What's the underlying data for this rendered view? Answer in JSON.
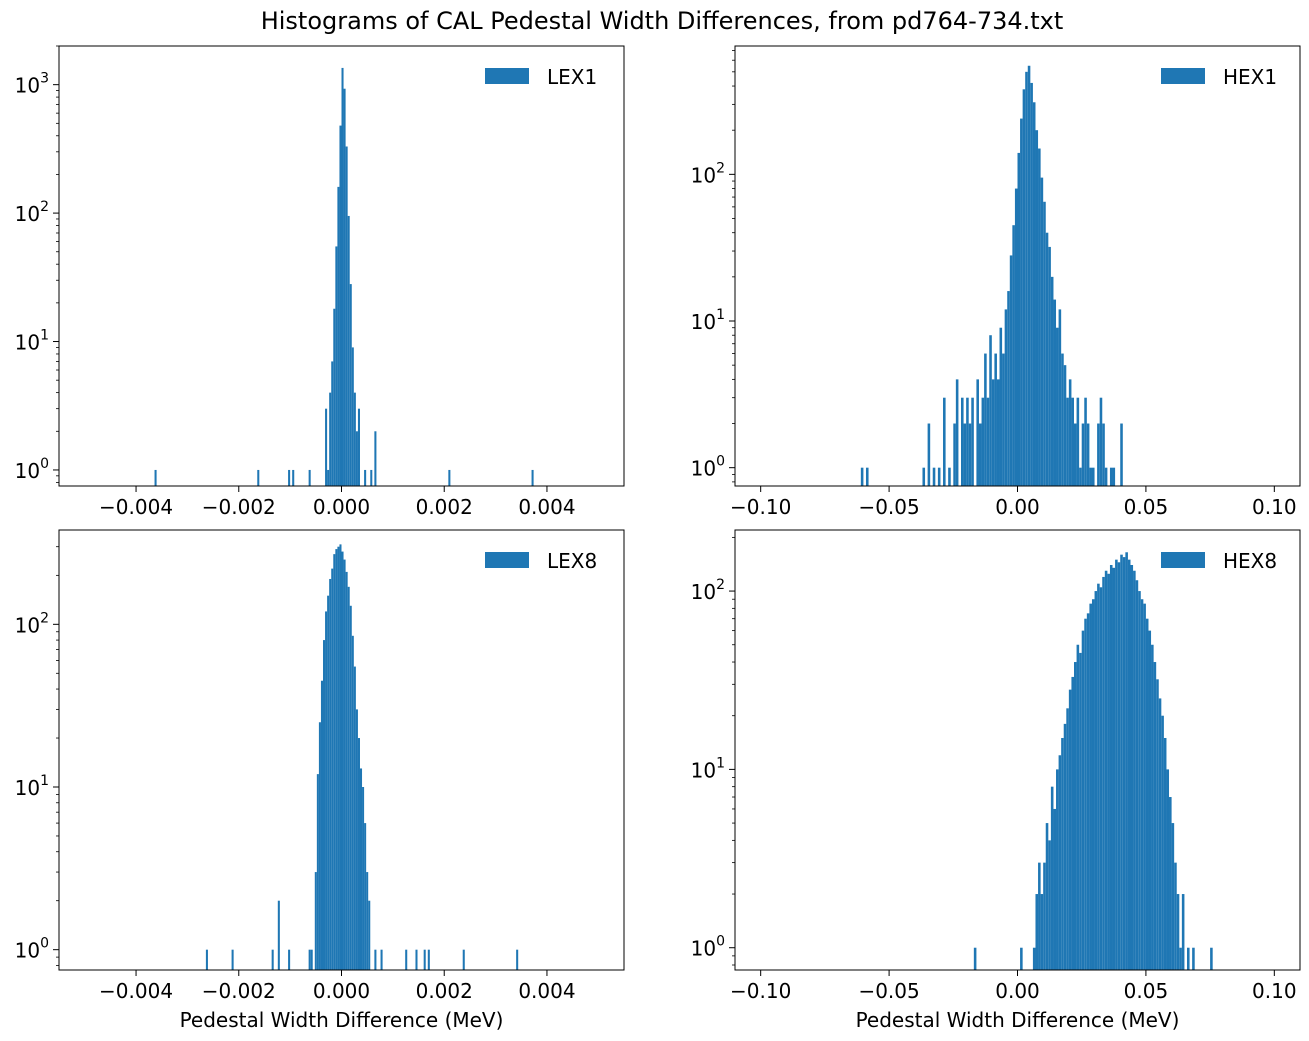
{
  "figure": {
    "title": "Histograms of CAL Pedestal Width Differences, from pd764-734.txt",
    "bar_color": "#1f77b4"
  },
  "chart_data": [
    {
      "type": "bar",
      "title": "",
      "legend": [
        "LEX1"
      ],
      "legend_position": "upper right",
      "xlabel": "",
      "ylabel": "",
      "yscale": "log",
      "xlim": [
        -0.0055,
        0.0055
      ],
      "ylim": [
        0.75,
        2000
      ],
      "xticks": [
        -0.004,
        -0.002,
        0.0,
        0.002,
        0.004
      ],
      "xtick_labels": [
        "−0.004",
        "−0.002",
        "0.000",
        "0.002",
        "0.004"
      ],
      "yticks": [
        1,
        10,
        100,
        1000
      ],
      "ytick_labels": [
        {
          "base": "10",
          "exp": "0"
        },
        {
          "base": "10",
          "exp": "1"
        },
        {
          "base": "10",
          "exp": "2"
        },
        {
          "base": "10",
          "exp": "3"
        }
      ],
      "bin_width": 4e-05,
      "bins": [
        [
          -0.00364,
          1
        ],
        [
          -0.00164,
          1
        ],
        [
          -0.00104,
          1
        ],
        [
          -0.00096,
          1
        ],
        [
          -0.00064,
          1
        ],
        [
          -0.00032,
          3
        ],
        [
          -0.00028,
          1
        ],
        [
          -0.00024,
          4
        ],
        [
          -0.0002,
          7
        ],
        [
          -0.00016,
          18
        ],
        [
          -0.00012,
          55
        ],
        [
          -8e-05,
          160
        ],
        [
          -4e-05,
          480
        ],
        [
          0.0,
          1350
        ],
        [
          4e-05,
          930
        ],
        [
          8e-05,
          330
        ],
        [
          0.00012,
          95
        ],
        [
          0.00016,
          28
        ],
        [
          0.0002,
          9
        ],
        [
          0.00024,
          4
        ],
        [
          0.00028,
          2
        ],
        [
          0.00032,
          3
        ],
        [
          0.00044,
          1
        ],
        [
          0.00056,
          1
        ],
        [
          0.00064,
          2
        ],
        [
          0.00208,
          1
        ],
        [
          0.0037,
          1
        ]
      ]
    },
    {
      "type": "bar",
      "title": "",
      "legend": [
        "HEX1"
      ],
      "legend_position": "upper right",
      "xlabel": "",
      "ylabel": "",
      "yscale": "log",
      "xlim": [
        -0.11,
        0.11
      ],
      "ylim": [
        0.75,
        750
      ],
      "xticks": [
        -0.1,
        -0.05,
        0.0,
        0.05,
        0.1
      ],
      "xtick_labels": [
        "−0.10",
        "−0.05",
        "0.00",
        "0.05",
        "0.10"
      ],
      "yticks": [
        1,
        10,
        100
      ],
      "ytick_labels": [
        {
          "base": "10",
          "exp": "0"
        },
        {
          "base": "10",
          "exp": "1"
        },
        {
          "base": "10",
          "exp": "2"
        }
      ],
      "bin_width": 0.001,
      "bins": [
        [
          -0.061,
          1
        ],
        [
          -0.059,
          1
        ],
        [
          -0.037,
          1
        ],
        [
          -0.035,
          2
        ],
        [
          -0.033,
          1
        ],
        [
          -0.031,
          1
        ],
        [
          -0.029,
          3
        ],
        [
          -0.027,
          1
        ],
        [
          -0.025,
          2
        ],
        [
          -0.024,
          4
        ],
        [
          -0.022,
          3
        ],
        [
          -0.021,
          2
        ],
        [
          -0.02,
          3
        ],
        [
          -0.019,
          2
        ],
        [
          -0.018,
          3
        ],
        [
          -0.016,
          4
        ],
        [
          -0.015,
          2
        ],
        [
          -0.014,
          3
        ],
        [
          -0.013,
          6
        ],
        [
          -0.012,
          3
        ],
        [
          -0.011,
          8
        ],
        [
          -0.01,
          4
        ],
        [
          -0.009,
          6
        ],
        [
          -0.008,
          4
        ],
        [
          -0.007,
          9
        ],
        [
          -0.006,
          6
        ],
        [
          -0.005,
          12
        ],
        [
          -0.004,
          16
        ],
        [
          -0.003,
          28
        ],
        [
          -0.002,
          45
        ],
        [
          -0.001,
          80
        ],
        [
          0.0,
          140
        ],
        [
          0.001,
          240
        ],
        [
          0.002,
          380
        ],
        [
          0.003,
          500
        ],
        [
          0.004,
          550
        ],
        [
          0.005,
          420
        ],
        [
          0.006,
          310
        ],
        [
          0.007,
          200
        ],
        [
          0.008,
          150
        ],
        [
          0.009,
          95
        ],
        [
          0.01,
          65
        ],
        [
          0.011,
          40
        ],
        [
          0.012,
          32
        ],
        [
          0.013,
          20
        ],
        [
          0.014,
          14
        ],
        [
          0.015,
          9
        ],
        [
          0.016,
          12
        ],
        [
          0.017,
          6
        ],
        [
          0.018,
          5
        ],
        [
          0.019,
          3
        ],
        [
          0.02,
          4
        ],
        [
          0.021,
          3
        ],
        [
          0.022,
          2
        ],
        [
          0.023,
          3
        ],
        [
          0.024,
          1
        ],
        [
          0.025,
          2
        ],
        [
          0.026,
          3
        ],
        [
          0.027,
          2
        ],
        [
          0.028,
          1
        ],
        [
          0.029,
          1
        ],
        [
          0.031,
          2
        ],
        [
          0.032,
          3
        ],
        [
          0.033,
          2
        ],
        [
          0.034,
          1
        ],
        [
          0.036,
          1
        ],
        [
          0.037,
          1
        ],
        [
          0.04,
          2
        ]
      ]
    },
    {
      "type": "bar",
      "title": "",
      "legend": [
        "LEX8"
      ],
      "legend_position": "upper right",
      "xlabel": "Pedestal Width Difference (MeV)",
      "ylabel": "",
      "yscale": "log",
      "xlim": [
        -0.0055,
        0.0055
      ],
      "ylim": [
        0.75,
        380
      ],
      "xticks": [
        -0.004,
        -0.002,
        0.0,
        0.002,
        0.004
      ],
      "xtick_labels": [
        "−0.004",
        "−0.002",
        "0.000",
        "0.002",
        "0.004"
      ],
      "yticks": [
        1,
        10,
        100
      ],
      "ytick_labels": [
        {
          "base": "10",
          "exp": "0"
        },
        {
          "base": "10",
          "exp": "1"
        },
        {
          "base": "10",
          "exp": "2"
        }
      ],
      "bin_width": 4e-05,
      "bins": [
        [
          -0.00264,
          1
        ],
        [
          -0.00214,
          1
        ],
        [
          -0.00136,
          1
        ],
        [
          -0.00124,
          2
        ],
        [
          -0.00104,
          1
        ],
        [
          -0.00064,
          1
        ],
        [
          -0.0006,
          1
        ],
        [
          -0.00052,
          3
        ],
        [
          -0.00048,
          12
        ],
        [
          -0.00044,
          25
        ],
        [
          -0.0004,
          45
        ],
        [
          -0.00036,
          80
        ],
        [
          -0.00032,
          120
        ],
        [
          -0.00028,
          150
        ],
        [
          -0.00024,
          190
        ],
        [
          -0.0002,
          220
        ],
        [
          -0.00016,
          270
        ],
        [
          -0.00012,
          290
        ],
        [
          -8e-05,
          300
        ],
        [
          -4e-05,
          310
        ],
        [
          0.0,
          280
        ],
        [
          4e-05,
          250
        ],
        [
          8e-05,
          210
        ],
        [
          0.00012,
          170
        ],
        [
          0.00016,
          130
        ],
        [
          0.0002,
          85
        ],
        [
          0.00024,
          55
        ],
        [
          0.00028,
          30
        ],
        [
          0.00032,
          20
        ],
        [
          0.00036,
          13
        ],
        [
          0.0004,
          10
        ],
        [
          0.00044,
          6
        ],
        [
          0.00048,
          3
        ],
        [
          0.00052,
          2
        ],
        [
          0.00064,
          1
        ],
        [
          0.00076,
          1
        ],
        [
          0.00124,
          1
        ],
        [
          0.00144,
          1
        ],
        [
          0.0016,
          1
        ],
        [
          0.00168,
          1
        ],
        [
          0.00236,
          1
        ],
        [
          0.0034,
          1
        ]
      ]
    },
    {
      "type": "bar",
      "title": "",
      "legend": [
        "HEX8"
      ],
      "legend_position": "upper right",
      "xlabel": "Pedestal Width Difference (MeV)",
      "ylabel": "",
      "yscale": "log",
      "xlim": [
        -0.11,
        0.11
      ],
      "ylim": [
        0.75,
        220
      ],
      "xticks": [
        -0.1,
        -0.05,
        0.0,
        0.05,
        0.1
      ],
      "xtick_labels": [
        "−0.10",
        "−0.05",
        "0.00",
        "0.05",
        "0.10"
      ],
      "yticks": [
        1,
        10,
        100
      ],
      "ytick_labels": [
        {
          "base": "10",
          "exp": "0"
        },
        {
          "base": "10",
          "exp": "1"
        },
        {
          "base": "10",
          "exp": "2"
        }
      ],
      "bin_width": 0.001,
      "bins": [
        [
          -0.017,
          1
        ],
        [
          0.001,
          1
        ],
        [
          0.006,
          1
        ],
        [
          0.007,
          2
        ],
        [
          0.008,
          3
        ],
        [
          0.009,
          2
        ],
        [
          0.01,
          3
        ],
        [
          0.011,
          5
        ],
        [
          0.012,
          4
        ],
        [
          0.013,
          8
        ],
        [
          0.014,
          6
        ],
        [
          0.015,
          10
        ],
        [
          0.016,
          12
        ],
        [
          0.017,
          15
        ],
        [
          0.018,
          18
        ],
        [
          0.019,
          22
        ],
        [
          0.02,
          28
        ],
        [
          0.021,
          33
        ],
        [
          0.022,
          40
        ],
        [
          0.023,
          50
        ],
        [
          0.024,
          45
        ],
        [
          0.025,
          60
        ],
        [
          0.026,
          70
        ],
        [
          0.027,
          75
        ],
        [
          0.028,
          85
        ],
        [
          0.029,
          90
        ],
        [
          0.03,
          100
        ],
        [
          0.031,
          110
        ],
        [
          0.032,
          105
        ],
        [
          0.033,
          120
        ],
        [
          0.034,
          130
        ],
        [
          0.035,
          125
        ],
        [
          0.036,
          140
        ],
        [
          0.037,
          135
        ],
        [
          0.038,
          150
        ],
        [
          0.039,
          145
        ],
        [
          0.04,
          160
        ],
        [
          0.041,
          155
        ],
        [
          0.042,
          165
        ],
        [
          0.043,
          150
        ],
        [
          0.044,
          140
        ],
        [
          0.045,
          130
        ],
        [
          0.046,
          115
        ],
        [
          0.047,
          100
        ],
        [
          0.048,
          90
        ],
        [
          0.049,
          85
        ],
        [
          0.05,
          70
        ],
        [
          0.051,
          60
        ],
        [
          0.052,
          50
        ],
        [
          0.053,
          40
        ],
        [
          0.054,
          32
        ],
        [
          0.055,
          25
        ],
        [
          0.056,
          20
        ],
        [
          0.057,
          15
        ],
        [
          0.058,
          10
        ],
        [
          0.059,
          7
        ],
        [
          0.06,
          5
        ],
        [
          0.061,
          3
        ],
        [
          0.062,
          2
        ],
        [
          0.063,
          1
        ],
        [
          0.064,
          2
        ],
        [
          0.066,
          1
        ],
        [
          0.068,
          1
        ],
        [
          0.075,
          1
        ]
      ]
    }
  ]
}
